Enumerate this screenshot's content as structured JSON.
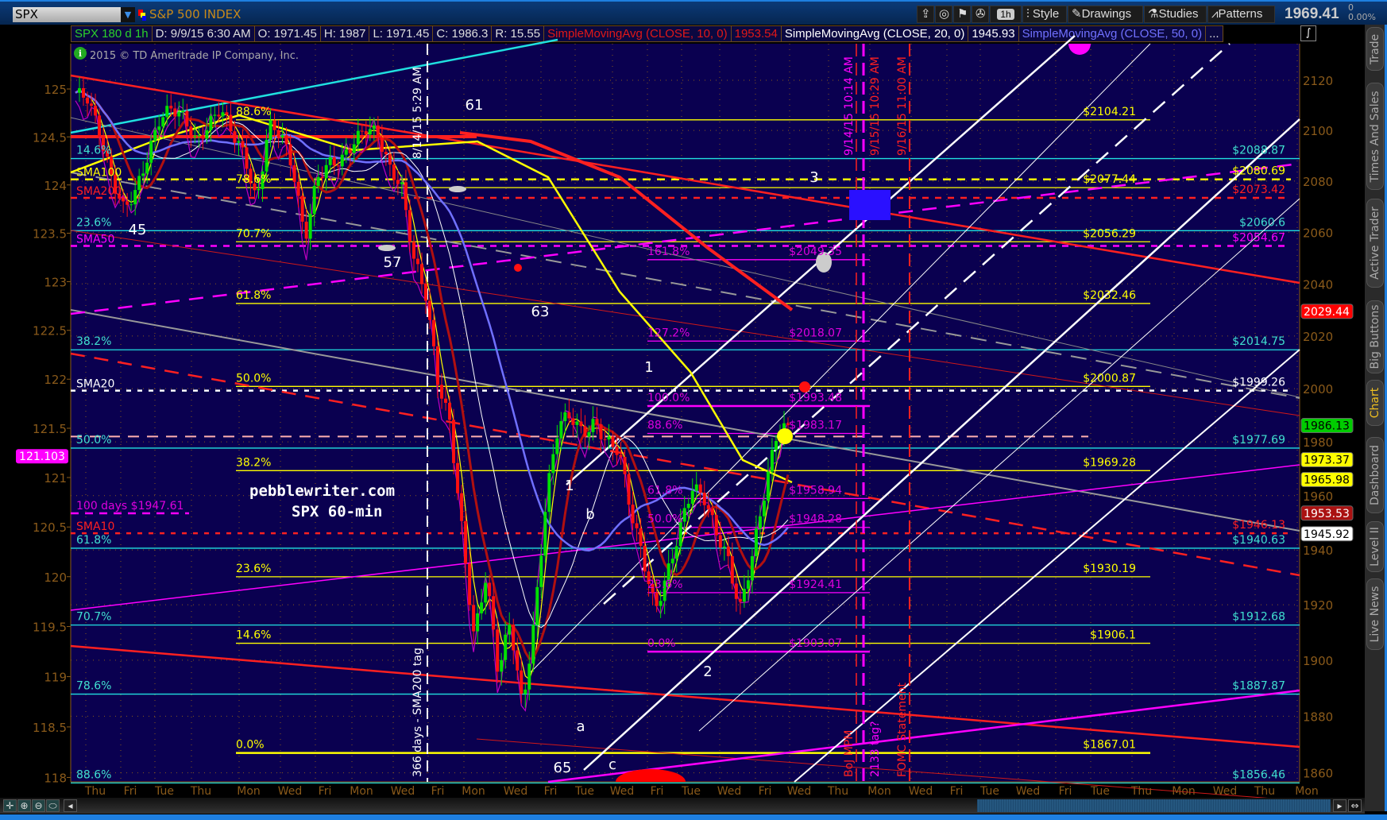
{
  "toolbar": {
    "symbol": "SPX",
    "description": "S&P 500 INDEX",
    "timeframe": "1h",
    "style": "Style",
    "drawings": "Drawings",
    "studies": "Studies",
    "patterns": "Patterns",
    "last_price": "1969.41",
    "change": "0",
    "change_pct": "0.00%"
  },
  "info_bar": {
    "spec": "SPX 180 d 1h",
    "date": "D: 9/9/15 6:30 AM",
    "open": "O: 1971.45",
    "high": "H: 1987",
    "low": "L: 1971.45",
    "close": "C: 1986.3",
    "range": "R: 15.55",
    "sma10_label": "SimpleMovingAvg (CLOSE, 10, 0)",
    "sma10_value": "1953.54",
    "sma20_label": "SimpleMovingAvg (CLOSE, 20, 0)",
    "sma20_value": "1945.93",
    "sma50_label": "SimpleMovingAvg (CLOSE, 50, 0)",
    "more": "..."
  },
  "copyright": "2015 © TD Ameritrade IP Company, Inc.",
  "watermark": {
    "line1": "pebblewriter.com",
    "line2": "SPX 60-min"
  },
  "right_axis": {
    "scale": "log",
    "ticks": [
      "2120",
      "2100",
      "2080",
      "2060",
      "2040",
      "2020",
      "2000",
      "1980",
      "1960",
      "1940",
      "1920",
      "1900",
      "1880",
      "1860"
    ]
  },
  "left_axis": {
    "scale": "log",
    "ticks": [
      "125",
      "124.5",
      "124",
      "123.5",
      "123",
      "122.5",
      "122",
      "121.5",
      "121",
      "120.5",
      "120",
      "119.5",
      "119",
      "118.5",
      "118"
    ]
  },
  "x_axis": {
    "labels": [
      "Thu",
      "Fri",
      "Tue",
      "Thu",
      "Mon",
      "Wed",
      "Fri",
      "Mon",
      "Wed",
      "Fri",
      "Mon",
      "Wed",
      "Fri",
      "Tue",
      "Wed",
      "Fri",
      "Tue",
      "Wed",
      "Fri",
      "Wed",
      "Thu",
      "Mon",
      "Wed",
      "Fri",
      "Tue",
      "Wed",
      "Fri",
      "Tue",
      "Thu",
      "Mon",
      "Wed",
      "Thu",
      "Mon"
    ]
  },
  "price_tags": [
    {
      "value": "2029.44",
      "bg": "#ff0000",
      "fg": "#ffffff"
    },
    {
      "value": "1986.13",
      "bg": "#00cc00",
      "fg": "#000000"
    },
    {
      "value": "1973.37",
      "bg": "#ffff00",
      "fg": "#000000"
    },
    {
      "value": "1965.98",
      "bg": "#ffff00",
      "fg": "#000000"
    },
    {
      "value": "1953.53",
      "bg": "#aa1111",
      "fg": "#ffffff"
    },
    {
      "value": "1945.92",
      "bg": "#ffffff",
      "fg": "#000000"
    }
  ],
  "left_tag": {
    "value": "121.103",
    "bg": "#ff00ff"
  },
  "cyan_fib": [
    {
      "pct": "14.6%",
      "price": "$2088.87"
    },
    {
      "pct": "23.6%",
      "price": "$2060.6"
    },
    {
      "pct": "38.2%",
      "price": "$2014.75"
    },
    {
      "pct": "50.0%",
      "price": "$1977.69"
    },
    {
      "pct": "61.8%",
      "price": "$1940.63"
    },
    {
      "pct": "70.7%",
      "price": "$1912.68"
    },
    {
      "pct": "78.6%",
      "price": "$1887.87"
    },
    {
      "pct": "88.6%",
      "price": "$1856.46"
    }
  ],
  "yellow_fib": [
    {
      "pct": "88.6%",
      "price": "$2104.21"
    },
    {
      "pct": "78.6%",
      "price": "$2077.44"
    },
    {
      "pct": "70.7%",
      "price": "$2056.29"
    },
    {
      "pct": "61.8%",
      "price": "$2032.46"
    },
    {
      "pct": "50.0%",
      "price": "$2000.87"
    },
    {
      "pct": "38.2%",
      "price": "$1969.28"
    },
    {
      "pct": "23.6%",
      "price": "$1930.19"
    },
    {
      "pct": "14.6%",
      "price": "$1906.1"
    },
    {
      "pct": "0.0%",
      "price": "$1867.01"
    }
  ],
  "magenta_fib": [
    {
      "pct": "161.8%",
      "price": "$2049.35"
    },
    {
      "pct": "127.2%",
      "price": "$2018.07"
    },
    {
      "pct": "100.0%",
      "price": "$1993.48"
    },
    {
      "pct": "88.6%",
      "price": "$1983.17"
    },
    {
      "pct": "61.8%",
      "price": "$1958.94"
    },
    {
      "pct": "50.0%",
      "price": "$1948.28"
    },
    {
      "pct": "23.6%",
      "price": "$1924.41"
    },
    {
      "pct": "0.0%",
      "price": "$1903.07"
    }
  ],
  "sma_lines": [
    {
      "name": "SMA100",
      "price": "$2080.69",
      "color": "#ffff00"
    },
    {
      "name": "SMA200",
      "price": "$2073.42",
      "color": "#ff2020"
    },
    {
      "name": "SMA50",
      "price": "$2054.67",
      "color": "#ff00ff"
    },
    {
      "name": "SMA20",
      "price": "$1999.26",
      "color": "#ffffff"
    },
    {
      "name": "SMA10",
      "price": "$1946.13",
      "color": "#ff2020"
    }
  ],
  "days_label": "100 days  $1947.61",
  "wave_labels": [
    "61",
    "45",
    "57",
    "63",
    "65",
    "a",
    "b",
    "c",
    "1",
    "1",
    "2",
    "3"
  ],
  "vertical_labels": {
    "sma200_tag_time": "8/14/15 5:29 AM",
    "sma200_tag": "366 days - SMA200 tag",
    "mark1": "9/14/15 10:14 AM",
    "mark2": "9/15/15 10:29 AM",
    "fomc_time": "9/16/15 11:00 AM",
    "boj": "BoJ MPM",
    "tag": "2133 tag?",
    "fomc": "FOMC Statement"
  },
  "side_tabs": [
    "Trade",
    "Times And Sales",
    "Active Trader",
    "Big Buttons",
    "Chart",
    "Dashboard",
    "Level II",
    "Live News"
  ],
  "active_side_tab": "Chart",
  "chart_data": {
    "type": "candlestick",
    "title": "SPX 180 d 1h",
    "y_scale": "log",
    "ylim": [
      1855,
      2135
    ],
    "closes": [
      2115,
      2113,
      2099,
      2081,
      2069,
      2076,
      2090,
      2105,
      2109,
      2105,
      2095,
      2102,
      2109,
      2099,
      2090,
      2071,
      2102,
      2099,
      2085,
      2057,
      2081,
      2087,
      2088,
      2095,
      2101,
      2099,
      2085,
      2078,
      2050,
      2036,
      2003,
      1987,
      1947,
      1908,
      1931,
      1896,
      1914,
      1883,
      1914,
      1960,
      1987,
      1990,
      1983,
      1987,
      1980,
      1977,
      1954,
      1937,
      1918,
      1931,
      1947,
      1963,
      1960,
      1947,
      1937,
      1918,
      1937,
      1960,
      1982,
      1986.3
    ]
  }
}
